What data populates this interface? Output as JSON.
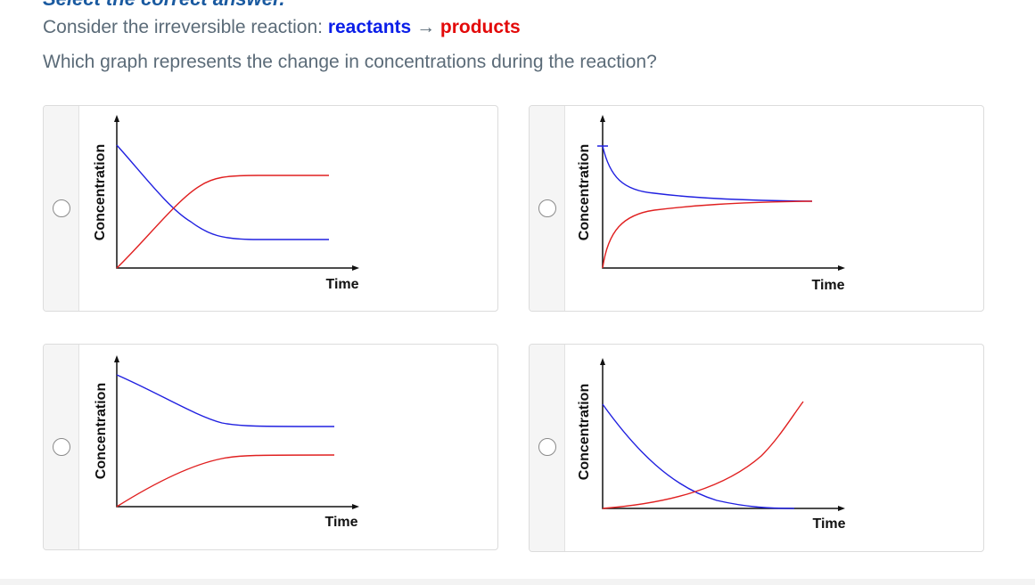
{
  "header": {
    "instruction": "Select the correct answer.",
    "prompt": "Consider the irreversible reaction:",
    "reactants": "reactants",
    "arrow": "→",
    "products": "products",
    "question": "Which graph represents the change in concentrations during the reaction?"
  },
  "options": [
    {
      "y_label": "Concentration",
      "x_label": "Time"
    },
    {
      "y_label": "Concentration",
      "x_label": "Time"
    },
    {
      "y_label": "Concentration",
      "x_label": "Time"
    },
    {
      "y_label": "Concentration",
      "x_label": "Time"
    }
  ]
}
